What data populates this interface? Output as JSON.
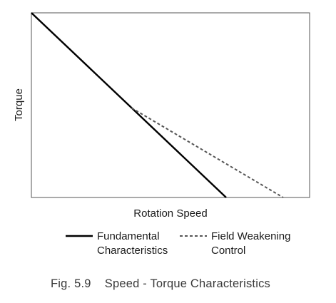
{
  "chart_data": {
    "type": "line",
    "title": "",
    "xlabel": "Rotation Speed",
    "ylabel": "Torque",
    "xlim": [
      0,
      100
    ],
    "ylim": [
      0,
      100
    ],
    "grid": false,
    "legend_placement": "bottom",
    "series": [
      {
        "name": "Fundamental Characteristics",
        "name_lines": [
          "Fundamental",
          "Characteristics"
        ],
        "style": "solid",
        "color": "#000000",
        "x": [
          0,
          70
        ],
        "y": [
          100,
          0
        ]
      },
      {
        "name": "Field Weakening Control",
        "name_lines": [
          "Field Weakening",
          "Control"
        ],
        "style": "dashed",
        "color": "#555555",
        "x": [
          36,
          90.5
        ],
        "y": [
          48.5,
          0
        ]
      }
    ]
  },
  "caption": "Fig. 5.9    Speed - Torque Characteristics"
}
